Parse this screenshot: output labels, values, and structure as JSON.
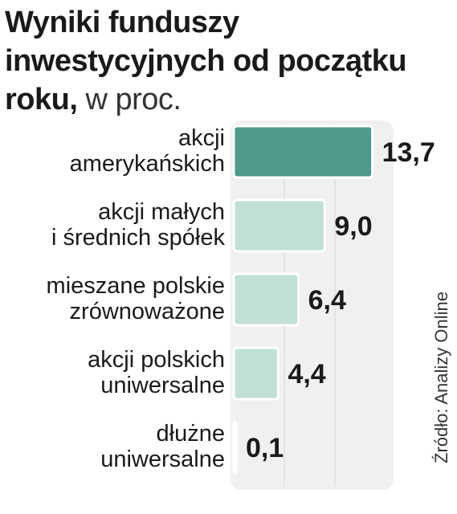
{
  "title": {
    "bold": "Wyniki funduszy inwestycyjnych od początku roku,",
    "light": "w proc."
  },
  "source": "Źródło: Analizy Online",
  "colors": {
    "highlight_bar": "#4f9a8a",
    "bar": "#c2e0d8",
    "panel": "#f0f0f0"
  },
  "chart_data": {
    "type": "bar",
    "orientation": "horizontal",
    "title": "Wyniki funduszy inwestycyjnych od początku roku, w proc.",
    "categories": [
      [
        "akcji",
        "amerykańskich"
      ],
      [
        "akcji małych",
        "i średnich spółek"
      ],
      [
        "mieszane polskie",
        "zrównoważone"
      ],
      [
        "akcji polskich",
        "uniwersalne"
      ],
      [
        "dłużne",
        "uniwersalne"
      ]
    ],
    "values": [
      13.7,
      9.0,
      6.4,
      4.4,
      0.1
    ],
    "value_labels": [
      "13,7",
      "9,0",
      "6,4",
      "4,4",
      "0,1"
    ],
    "highlighted_index": 0,
    "xlim": [
      0,
      14
    ],
    "grid": true
  }
}
